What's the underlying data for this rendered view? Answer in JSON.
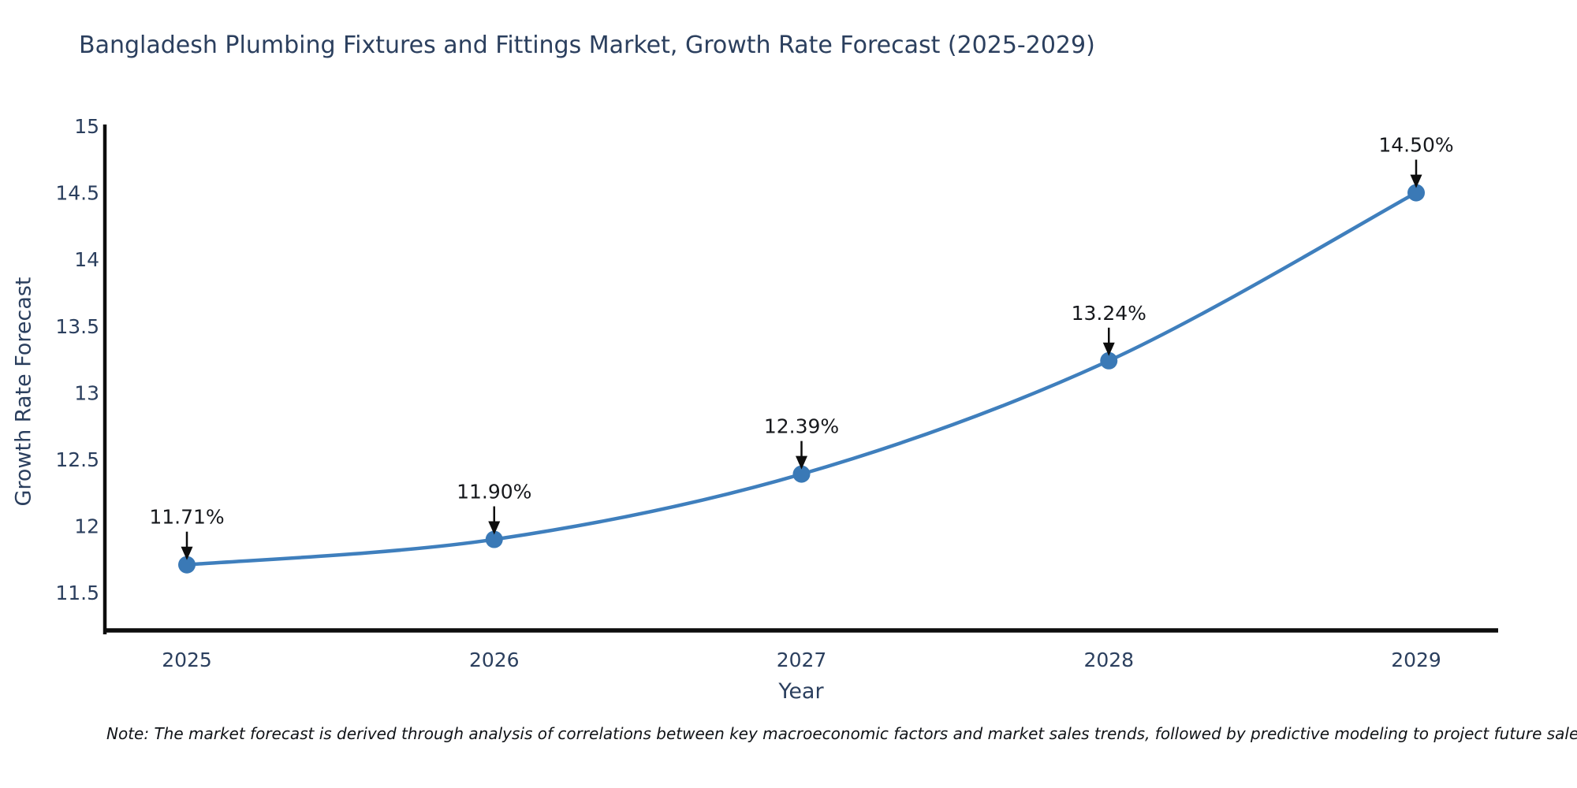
{
  "chart": {
    "note": "Note: The market forecast is derived through analysis of correlations between key macroeconomic factors and market sales trends, followed by predictive modeling to project future sales performance."
  },
  "chart_data": {
    "type": "line",
    "title": "Bangladesh Plumbing Fixtures and Fittings Market, Growth Rate Forecast (2025-2029)",
    "xlabel": "Year",
    "ylabel": "Growth Rate Forecast",
    "x": [
      2025,
      2026,
      2027,
      2028,
      2029
    ],
    "values": [
      11.71,
      11.9,
      12.39,
      13.24,
      14.5
    ],
    "point_labels": [
      "11.71%",
      "11.90%",
      "12.39%",
      "13.24%",
      "14.50%"
    ],
    "yticks": [
      11.5,
      12,
      12.5,
      13,
      13.5,
      14,
      14.5,
      15
    ],
    "ylim": [
      11.2,
      15
    ],
    "grid": false,
    "legend": "none",
    "colors": {
      "line": "#3f7fbd",
      "marker": "#3a79b6",
      "axis": "#0d0d0d",
      "tick_text": "#2b3f5e",
      "annotation_text": "#16181c",
      "arrow": "#0d0d0d"
    }
  }
}
